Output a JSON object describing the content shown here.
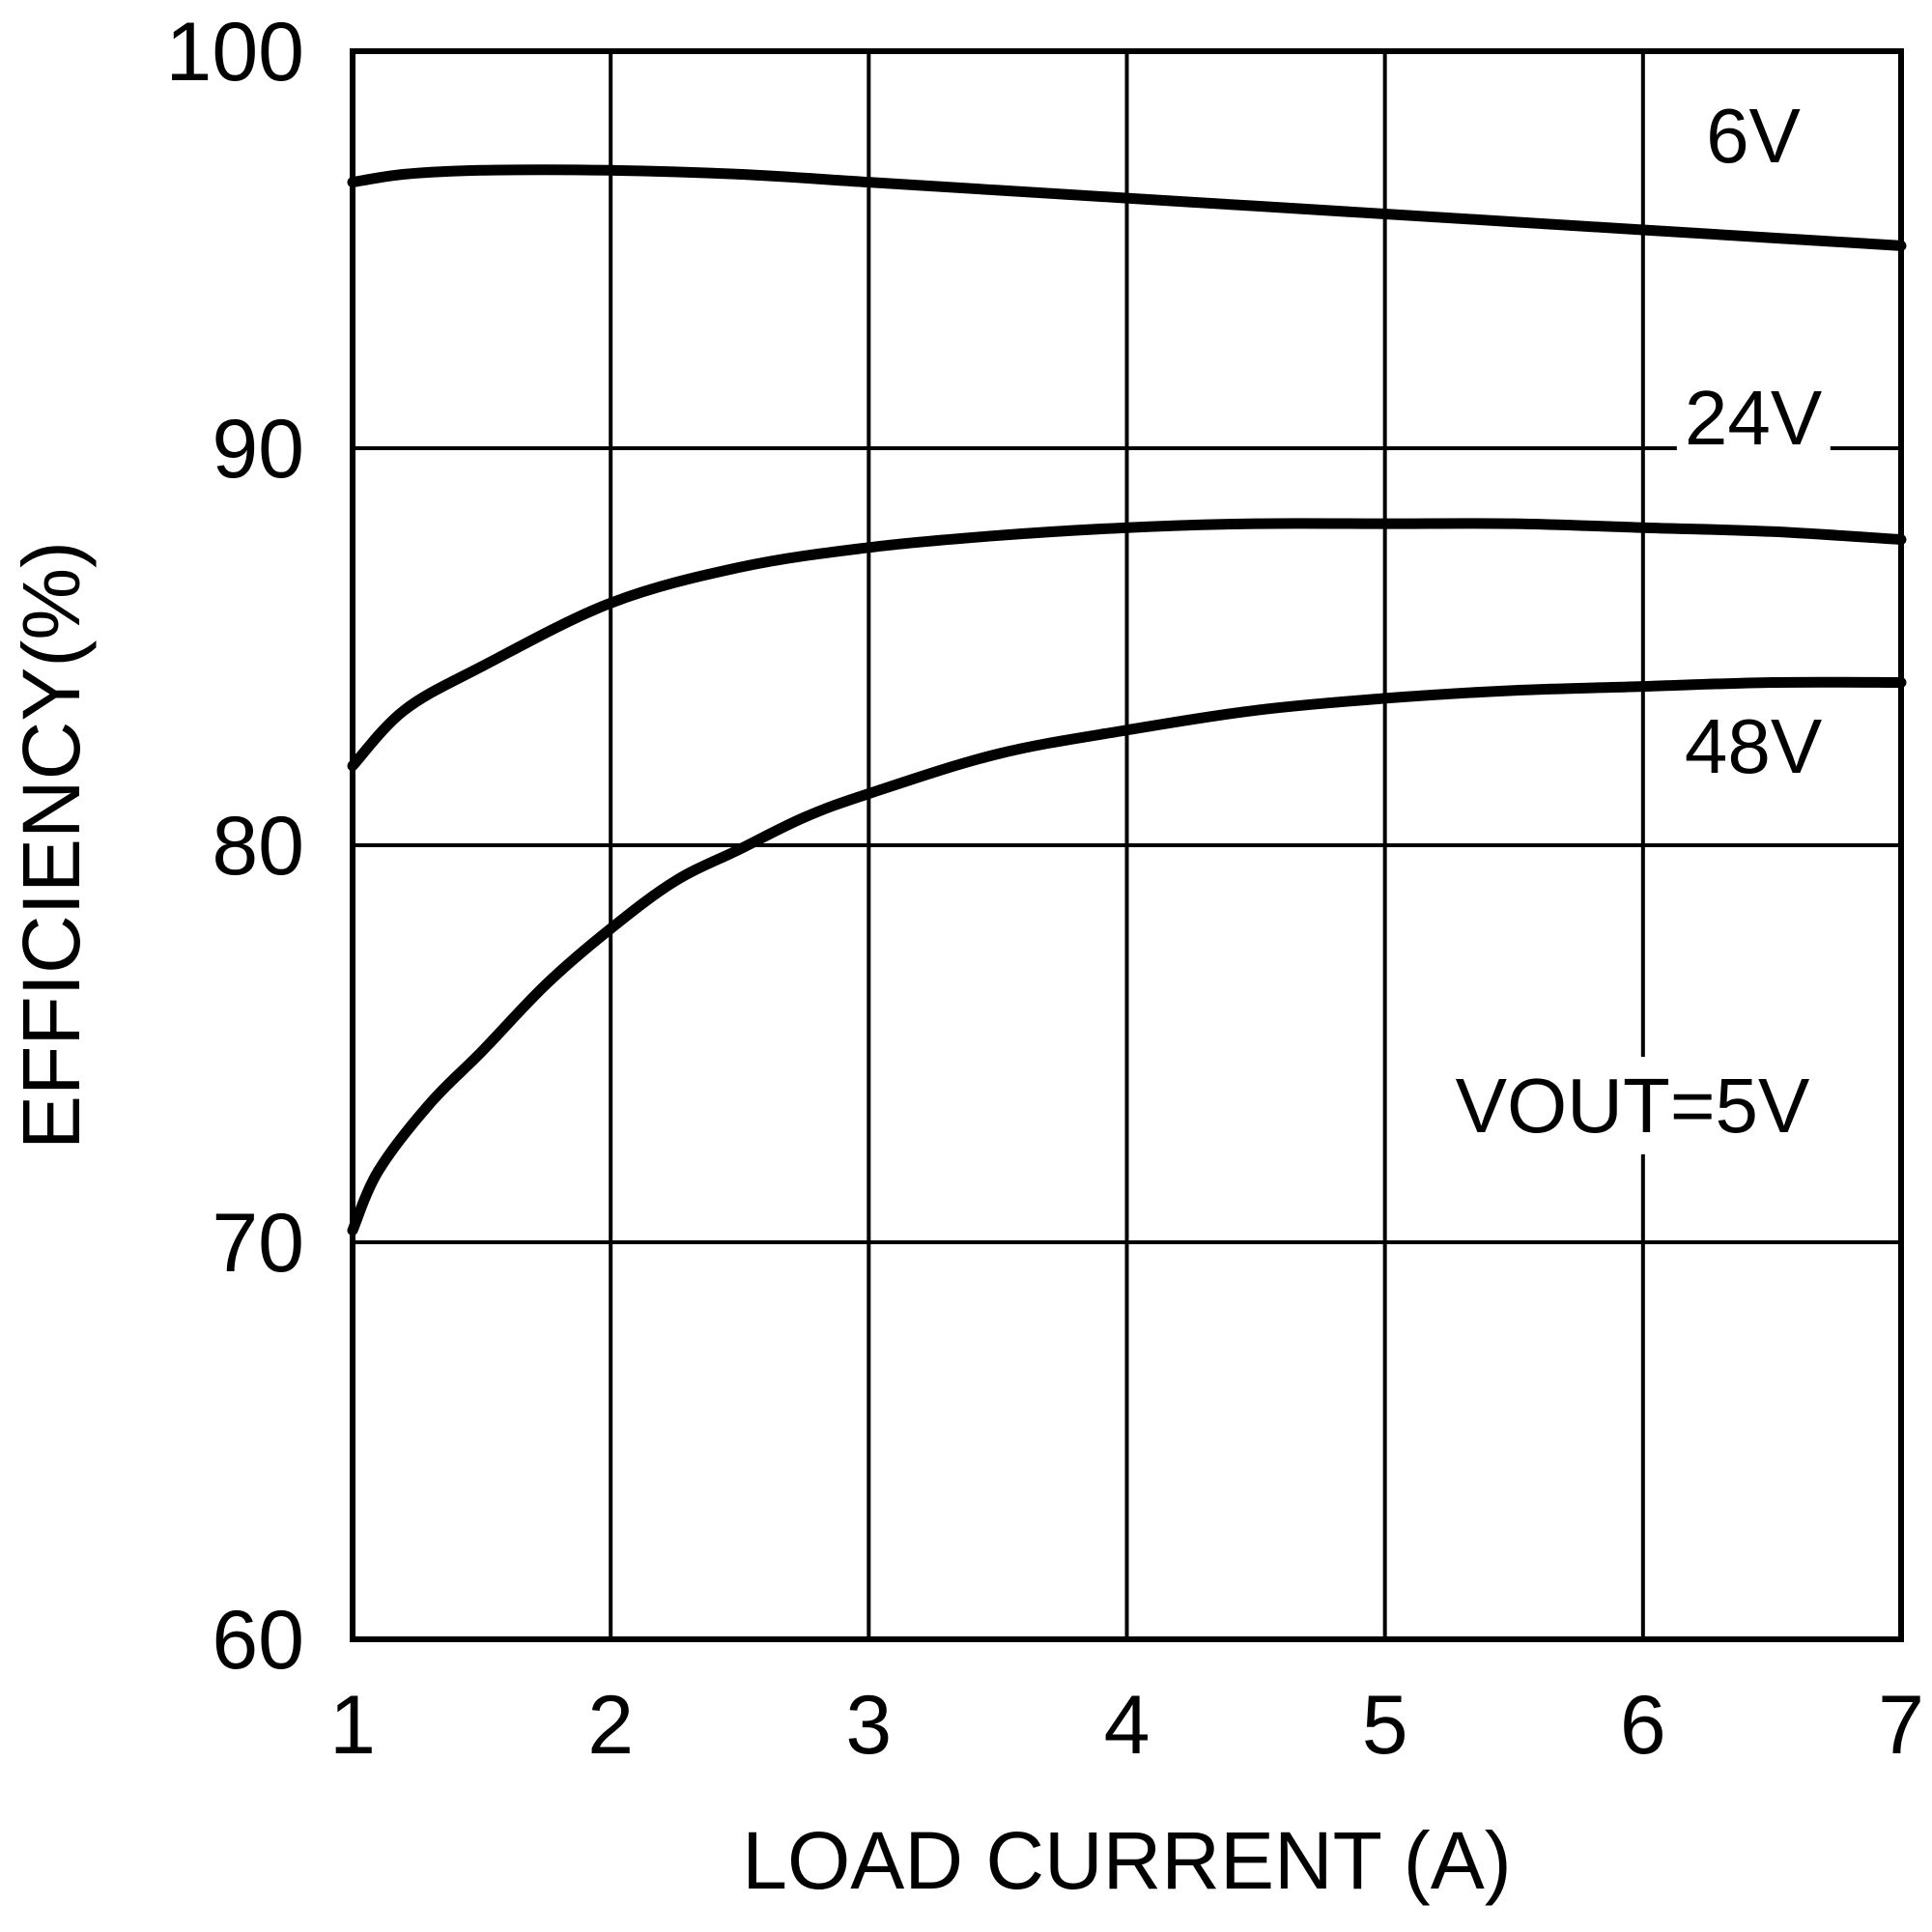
{
  "chart_data": {
    "type": "line",
    "title": "",
    "xlabel": "LOAD CURRENT (A)",
    "ylabel": "EFFICIENCY(%)",
    "xlim": [
      1,
      7
    ],
    "ylim": [
      60,
      100
    ],
    "x_ticks": [
      1,
      2,
      3,
      4,
      5,
      6,
      7
    ],
    "y_ticks": [
      60,
      70,
      80,
      90,
      100
    ],
    "grid": true,
    "legend": "none",
    "annotation": "VOUT=5V",
    "series": [
      {
        "name": "6V",
        "x": [
          1.0,
          1.2,
          1.5,
          2.0,
          2.5,
          3.0,
          3.5,
          4.0,
          4.5,
          5.0,
          5.5,
          6.0,
          6.5,
          7.0
        ],
        "y": [
          96.7,
          96.9,
          97.0,
          97.0,
          96.9,
          96.7,
          96.5,
          96.3,
          96.1,
          95.9,
          95.7,
          95.5,
          95.3,
          95.1
        ]
      },
      {
        "name": "24V",
        "x": [
          1.0,
          1.2,
          1.5,
          2.0,
          2.5,
          3.0,
          3.5,
          4.0,
          4.5,
          5.0,
          5.5,
          6.0,
          6.5,
          7.0
        ],
        "y": [
          82.0,
          83.4,
          84.5,
          86.1,
          87.0,
          87.5,
          87.8,
          88.0,
          88.1,
          88.1,
          88.1,
          88.0,
          87.9,
          87.7
        ]
      },
      {
        "name": "48V",
        "x": [
          1.0,
          1.1,
          1.3,
          1.5,
          1.75,
          2.0,
          2.25,
          2.5,
          2.75,
          3.0,
          3.5,
          4.0,
          4.5,
          5.0,
          5.5,
          6.0,
          6.5,
          7.0
        ],
        "y": [
          70.3,
          71.8,
          73.5,
          74.8,
          76.5,
          77.9,
          79.1,
          79.9,
          80.7,
          81.3,
          82.3,
          82.9,
          83.4,
          83.7,
          83.9,
          84.0,
          84.1,
          84.1
        ]
      }
    ]
  }
}
